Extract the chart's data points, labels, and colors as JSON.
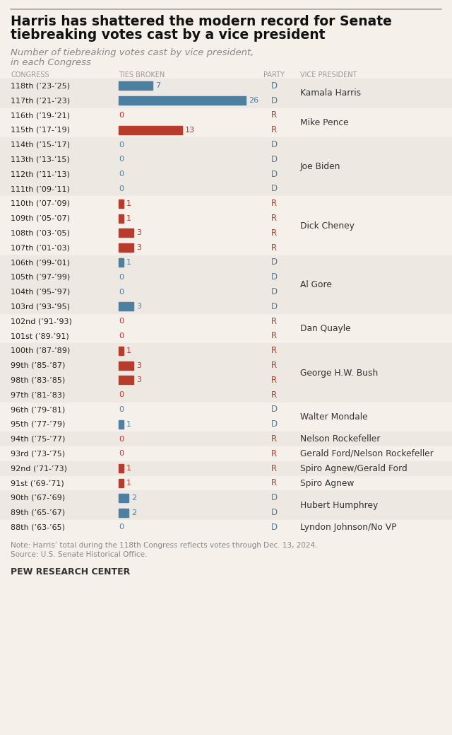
{
  "title_line1": "Harris has shattered the modern record for Senate",
  "title_line2": "tiebreaking votes cast by a vice president",
  "subtitle_line1": "Number of tiebreaking votes cast by vice president,",
  "subtitle_line2": "in each Congress",
  "col_headers": [
    "CONGRESS",
    "TIES BROKEN",
    "PARTY",
    "VICE PRESIDENT"
  ],
  "rows": [
    {
      "congress": "118th (’23-’25)",
      "value": 7,
      "party": "D",
      "vp": "Kamala Harris"
    },
    {
      "congress": "117th (’21-’23)",
      "value": 26,
      "party": "D",
      "vp": ""
    },
    {
      "congress": "116th (’19-’21)",
      "value": 0,
      "party": "R",
      "vp": "Mike Pence"
    },
    {
      "congress": "115th (’17-’19)",
      "value": 13,
      "party": "R",
      "vp": ""
    },
    {
      "congress": "114th (’15-’17)",
      "value": 0,
      "party": "D",
      "vp": "Joe Biden"
    },
    {
      "congress": "113th (’13-’15)",
      "value": 0,
      "party": "D",
      "vp": ""
    },
    {
      "congress": "112th (’11-’13)",
      "value": 0,
      "party": "D",
      "vp": ""
    },
    {
      "congress": "111th (’09-’11)",
      "value": 0,
      "party": "D",
      "vp": ""
    },
    {
      "congress": "110th (’07-’09)",
      "value": 1,
      "party": "R",
      "vp": "Dick Cheney"
    },
    {
      "congress": "109th (’05-’07)",
      "value": 1,
      "party": "R",
      "vp": ""
    },
    {
      "congress": "108th (’03-’05)",
      "value": 3,
      "party": "R",
      "vp": ""
    },
    {
      "congress": "107th (’01-’03)",
      "value": 3,
      "party": "R",
      "vp": ""
    },
    {
      "congress": "106th (’99-’01)",
      "value": 1,
      "party": "D",
      "vp": "Al Gore"
    },
    {
      "congress": "105th (’97-’99)",
      "value": 0,
      "party": "D",
      "vp": ""
    },
    {
      "congress": "104th (’95-’97)",
      "value": 0,
      "party": "D",
      "vp": ""
    },
    {
      "congress": "103rd (’93-’95)",
      "value": 3,
      "party": "D",
      "vp": ""
    },
    {
      "congress": "102nd (’91-’93)",
      "value": 0,
      "party": "R",
      "vp": "Dan Quayle"
    },
    {
      "congress": "101st (’89-’91)",
      "value": 0,
      "party": "R",
      "vp": ""
    },
    {
      "congress": "100th (’87-’89)",
      "value": 1,
      "party": "R",
      "vp": "George H.W. Bush"
    },
    {
      "congress": "99th (’85-’87)",
      "value": 3,
      "party": "R",
      "vp": ""
    },
    {
      "congress": "98th (’83-’85)",
      "value": 3,
      "party": "R",
      "vp": ""
    },
    {
      "congress": "97th (’81-’83)",
      "value": 0,
      "party": "R",
      "vp": ""
    },
    {
      "congress": "96th (’79-’81)",
      "value": 0,
      "party": "D",
      "vp": "Walter Mondale"
    },
    {
      "congress": "95th (’77-’79)",
      "value": 1,
      "party": "D",
      "vp": ""
    },
    {
      "congress": "94th (’75-’77)",
      "value": 0,
      "party": "R",
      "vp": "Nelson Rockefeller"
    },
    {
      "congress": "93rd (’73-’75)",
      "value": 0,
      "party": "R",
      "vp": "Gerald Ford/Nelson Rockefeller"
    },
    {
      "congress": "92nd (’71-’73)",
      "value": 1,
      "party": "R",
      "vp": "Spiro Agnew/Gerald Ford"
    },
    {
      "congress": "91st (’69-’71)",
      "value": 1,
      "party": "R",
      "vp": "Spiro Agnew"
    },
    {
      "congress": "90th (’67-’69)",
      "value": 2,
      "party": "D",
      "vp": "Hubert Humphrey"
    },
    {
      "congress": "89th (’65-’67)",
      "value": 2,
      "party": "D",
      "vp": ""
    },
    {
      "congress": "88th (’63-’65)",
      "value": 0,
      "party": "D",
      "vp": "Lyndon Johnson/No VP"
    }
  ],
  "groups": [
    {
      "start": 0,
      "end": 1,
      "vp": "Kamala Harris",
      "party": "D"
    },
    {
      "start": 2,
      "end": 3,
      "vp": "Mike Pence",
      "party": "R"
    },
    {
      "start": 4,
      "end": 7,
      "vp": "Joe Biden",
      "party": "D"
    },
    {
      "start": 8,
      "end": 11,
      "vp": "Dick Cheney",
      "party": "R"
    },
    {
      "start": 12,
      "end": 15,
      "vp": "Al Gore",
      "party": "D"
    },
    {
      "start": 16,
      "end": 17,
      "vp": "Dan Quayle",
      "party": "R"
    },
    {
      "start": 18,
      "end": 21,
      "vp": "George H.W. Bush",
      "party": "R"
    },
    {
      "start": 22,
      "end": 23,
      "vp": "Walter Mondale",
      "party": "D"
    },
    {
      "start": 24,
      "end": 24,
      "vp": "Nelson Rockefeller",
      "party": "R"
    },
    {
      "start": 25,
      "end": 25,
      "vp": "Gerald Ford/Nelson Rockefeller",
      "party": "R"
    },
    {
      "start": 26,
      "end": 26,
      "vp": "Spiro Agnew/Gerald Ford",
      "party": "R"
    },
    {
      "start": 27,
      "end": 27,
      "vp": "Spiro Agnew",
      "party": "R"
    },
    {
      "start": 28,
      "end": 29,
      "vp": "Hubert Humphrey",
      "party": "D"
    },
    {
      "start": 30,
      "end": 30,
      "vp": "Lyndon Johnson/No VP",
      "party": "D"
    }
  ],
  "color_D": "#4d7fa0",
  "color_R": "#b83c2b",
  "bg_light": "#ede8e1",
  "bg_dark": "#f5f0ea",
  "note_line1": "Note: Harris’ total during the 118th Congress reflects votes through Dec. 13, 2024.",
  "note_line2": "Source: U.S. Senate Historical Office.",
  "footer": "PEW RESEARCH CENTER",
  "max_value": 26
}
